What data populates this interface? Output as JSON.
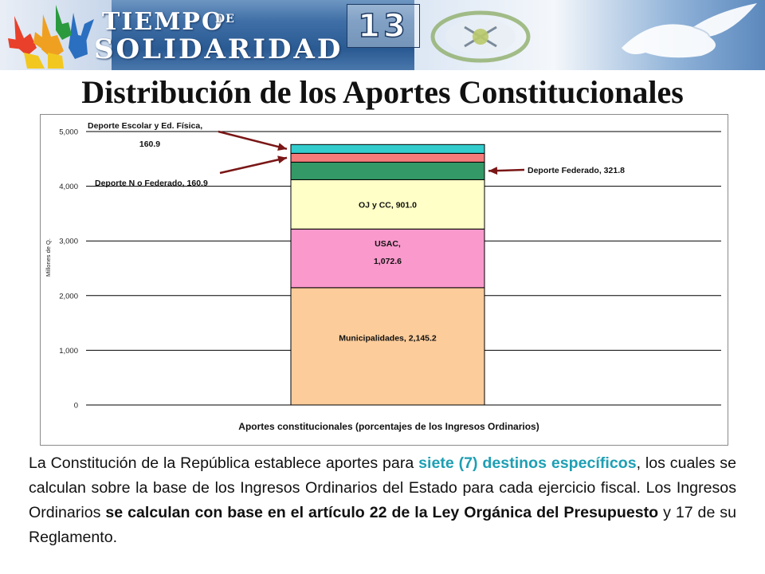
{
  "header": {
    "logo_line1": "TIEMPO",
    "logo_line1_small": "DE",
    "logo_line2": "SOLIDARIDAD",
    "page_number": "13"
  },
  "page_title": "Distribución de los Aportes Constitucionales",
  "chart_data": {
    "type": "bar",
    "stacked": true,
    "categories": [
      "Aportes constitucionales"
    ],
    "xlabel": "Aportes constitucionales (porcentajes de los Ingresos Ordinarios)",
    "ylabel": "Millones de Q.",
    "ylim": [
      0,
      5000
    ],
    "yticks": [
      "0",
      "1,000",
      "2,000",
      "3,000",
      "4,000",
      "5,000"
    ],
    "ytick_values": [
      0,
      1000,
      2000,
      3000,
      4000,
      5000
    ],
    "grid": true,
    "series": [
      {
        "name": "Municipalidades",
        "value": 2145.2,
        "label": "Municipalidades, 2,145.2",
        "color": "#fccc9a"
      },
      {
        "name": "USAC",
        "value": 1072.6,
        "label_line1": "USAC,",
        "label_line2": "1,072.6",
        "color": "#f999cc"
      },
      {
        "name": "OJ y CC",
        "value": 901.0,
        "label": "OJ y CC, 901.0",
        "color": "#ffffc7"
      },
      {
        "name": "Deporte Federado",
        "value": 321.8,
        "label": "Deporte Federado, 321.8",
        "color": "#339966"
      },
      {
        "name": "Deporte No Federado",
        "value": 160.9,
        "label": "Deporte N o Federado, 160.9",
        "color": "#f57a7a"
      },
      {
        "name": "Deporte Escolar y Ed. Física",
        "value": 160.9,
        "label_line1": "Deporte Escolar y Ed. Física,",
        "label_line2": "160.9",
        "color": "#33cccc"
      }
    ]
  },
  "body_text": {
    "p1": "La Constitución de la República establece aportes para ",
    "h1": "siete (7) destinos específicos",
    "p2": ", los cuales se calculan sobre la base de los Ingresos Ordinarios del Estado para cada ejercicio fiscal. Los Ingresos Ordinarios ",
    "b1": "se calculan con base en el artículo 22 de la Ley Orgánica del Presupuesto",
    "p3": " y 17 de su Reglamento."
  }
}
